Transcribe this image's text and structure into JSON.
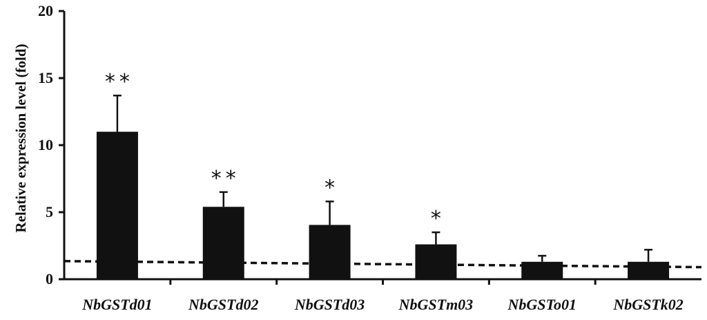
{
  "chart_data": {
    "type": "bar",
    "title": "",
    "xlabel": "",
    "ylabel": "Relative expression level (fold)",
    "ylim": [
      0,
      20
    ],
    "yticks": [
      0,
      5,
      10,
      15,
      20
    ],
    "categories": [
      "NbGSTd01",
      "NbGSTd02",
      "NbGSTd03",
      "NbGSTm03",
      "NbGSTo01",
      "NbGSTk02"
    ],
    "series": [
      {
        "values": [
          11.0,
          5.4,
          4.05,
          2.6,
          1.3,
          1.3
        ],
        "error": [
          2.7,
          1.1,
          1.75,
          0.9,
          0.45,
          0.9
        ],
        "significance": [
          "**",
          "**",
          "*",
          "*",
          "",
          ""
        ]
      }
    ],
    "reference_line": {
      "style": "dashed",
      "y_start": 1.35,
      "y_end": 0.9
    },
    "grid": false,
    "colors": {
      "bar": "#111111",
      "axis": "#111111"
    }
  }
}
